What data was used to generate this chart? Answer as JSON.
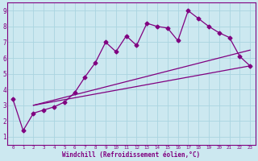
{
  "xlabel": "Windchill (Refroidissement éolien,°C)",
  "bg_color": "#cce8f0",
  "line_color": "#800080",
  "xlim_min": -0.5,
  "xlim_max": 23.5,
  "ylim_min": 0.5,
  "ylim_max": 9.5,
  "xticks": [
    0,
    1,
    2,
    3,
    4,
    5,
    6,
    7,
    8,
    9,
    10,
    11,
    12,
    13,
    14,
    15,
    16,
    17,
    18,
    19,
    20,
    21,
    22,
    23
  ],
  "yticks": [
    1,
    2,
    3,
    4,
    5,
    6,
    7,
    8,
    9
  ],
  "series1_x": [
    0,
    1,
    2,
    3,
    4,
    5,
    6,
    7,
    8,
    9,
    10,
    11,
    12,
    13,
    14,
    15,
    16,
    17,
    18,
    19,
    20,
    21,
    22,
    23
  ],
  "series1_y": [
    3.4,
    1.4,
    2.5,
    2.7,
    2.9,
    3.2,
    3.8,
    4.8,
    5.7,
    7.0,
    6.4,
    7.4,
    6.8,
    8.2,
    8.0,
    7.9,
    7.1,
    9.0,
    8.5,
    8.0,
    7.6,
    7.3,
    6.1,
    5.5
  ],
  "series2_x": [
    2,
    23
  ],
  "series2_y": [
    3.0,
    6.5
  ],
  "series3_x": [
    2,
    23
  ],
  "series3_y": [
    3.0,
    5.5
  ],
  "grid_color": "#aad4e0",
  "marker": "D",
  "marker_size": 2.5,
  "linewidth": 0.9,
  "xlabel_fontsize": 5.5,
  "tick_fontsize_x": 4.2,
  "tick_fontsize_y": 5.5
}
